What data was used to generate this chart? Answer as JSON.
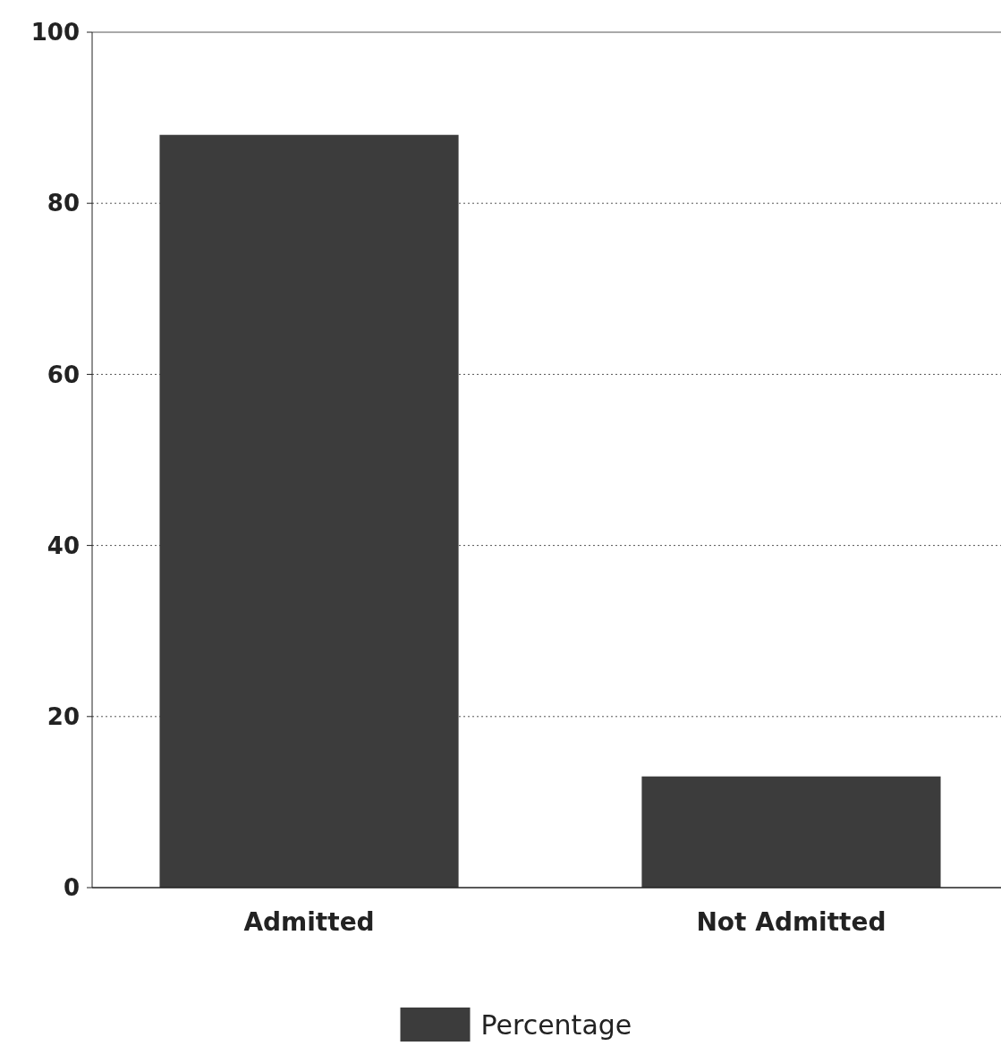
{
  "chart_data": {
    "type": "bar",
    "categories": [
      "Admitted",
      "Not Admitted"
    ],
    "series": [
      {
        "name": "Percentage",
        "color": "#3c3c3c",
        "values": [
          88,
          13
        ]
      }
    ],
    "ylim": [
      0,
      100
    ],
    "yticks": [
      0,
      20,
      40,
      60,
      80,
      100
    ],
    "grid": "y",
    "legend": "bottom"
  }
}
